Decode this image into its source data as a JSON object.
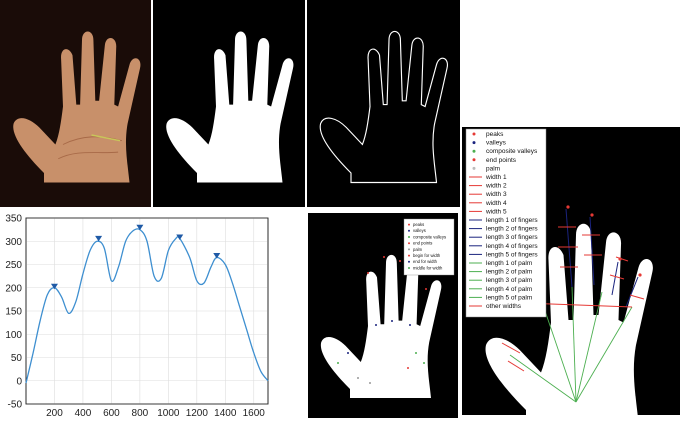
{
  "colors": {
    "black": "#000000",
    "white": "#ffffff",
    "skin": "#c8906a",
    "curve": "#3e8fd0",
    "marker": "#1f5aa6",
    "red": "#e53935",
    "blue": "#1a237e",
    "green": "#4caf50"
  },
  "panels": {
    "photo": {
      "icon": "hand-photo"
    },
    "mask": {
      "icon": "hand-silhouette"
    },
    "edge": {
      "icon": "hand-outline"
    }
  },
  "chart_data": {
    "type": "line",
    "x": [
      0,
      50,
      100,
      150,
      200,
      250,
      300,
      350,
      400,
      450,
      500,
      550,
      600,
      650,
      700,
      750,
      800,
      850,
      900,
      950,
      1000,
      1050,
      1080,
      1150,
      1200,
      1250,
      1300,
      1340,
      1400,
      1450,
      1500,
      1550,
      1600,
      1650,
      1700
    ],
    "y": [
      -5,
      60,
      130,
      185,
      200,
      180,
      145,
      170,
      230,
      280,
      300,
      285,
      215,
      245,
      300,
      322,
      325,
      300,
      225,
      220,
      280,
      305,
      306,
      265,
      215,
      210,
      245,
      265,
      250,
      210,
      160,
      110,
      60,
      20,
      0
    ],
    "peaks": [
      {
        "x": 200,
        "y": 200
      },
      {
        "x": 510,
        "y": 303
      },
      {
        "x": 800,
        "y": 327
      },
      {
        "x": 1080,
        "y": 306
      },
      {
        "x": 1340,
        "y": 266
      }
    ],
    "xticks": [
      "200",
      "400",
      "600",
      "800",
      "1000",
      "1200",
      "1400",
      "1600"
    ],
    "yticks": [
      "350",
      "300",
      "250",
      "200",
      "150",
      "100",
      "50",
      "0",
      "-50"
    ],
    "xlim": [
      0,
      1700
    ],
    "ylim": [
      -50,
      350
    ],
    "grid": true
  },
  "legend_small": {
    "items": [
      {
        "label": "peaks",
        "color": "#e53935",
        "mark": "dot"
      },
      {
        "label": "valleys",
        "color": "#1a237e",
        "mark": "dot"
      },
      {
        "label": "composite valleys",
        "color": "#4caf50",
        "mark": "dot"
      },
      {
        "label": "end points",
        "color": "#e53935",
        "mark": "dot"
      },
      {
        "label": "palm",
        "color": "#999999",
        "mark": "dot"
      },
      {
        "label": "begin for width",
        "color": "#e53935",
        "mark": "dot"
      },
      {
        "label": "end for width",
        "color": "#1a237e",
        "mark": "dot"
      },
      {
        "label": "middle for width",
        "color": "#4caf50",
        "mark": "dot"
      }
    ]
  },
  "legend_large": {
    "items": [
      {
        "label": "peaks",
        "color": "#e53935",
        "mark": "dot"
      },
      {
        "label": "valleys",
        "color": "#1a237e",
        "mark": "dot"
      },
      {
        "label": "composite valleys",
        "color": "#4caf50",
        "mark": "dot"
      },
      {
        "label": "end points",
        "color": "#e53935",
        "mark": "dot"
      },
      {
        "label": "palm",
        "color": "#bbbbbb",
        "mark": "dot"
      },
      {
        "label": "width 1",
        "color": "#e53935",
        "mark": "line"
      },
      {
        "label": "width 2",
        "color": "#e53935",
        "mark": "line"
      },
      {
        "label": "width 3",
        "color": "#e53935",
        "mark": "line"
      },
      {
        "label": "width 4",
        "color": "#e53935",
        "mark": "line"
      },
      {
        "label": "width 5",
        "color": "#e53935",
        "mark": "line"
      },
      {
        "label": "length 1 of fingers",
        "color": "#1a237e",
        "mark": "line"
      },
      {
        "label": "length 2 of fingers",
        "color": "#1a237e",
        "mark": "line"
      },
      {
        "label": "length 3 of fingers",
        "color": "#1a237e",
        "mark": "line"
      },
      {
        "label": "length 4 of fingers",
        "color": "#1a237e",
        "mark": "line"
      },
      {
        "label": "length 5 of fingers",
        "color": "#1a237e",
        "mark": "line"
      },
      {
        "label": "length 1 of palm",
        "color": "#4caf50",
        "mark": "line"
      },
      {
        "label": "length 2 of palm",
        "color": "#4caf50",
        "mark": "line"
      },
      {
        "label": "length 3 of palm",
        "color": "#4caf50",
        "mark": "line"
      },
      {
        "label": "length 4 of palm",
        "color": "#4caf50",
        "mark": "line"
      },
      {
        "label": "length 5 of palm",
        "color": "#4caf50",
        "mark": "line"
      },
      {
        "label": "other widths",
        "color": "#e53935",
        "mark": "line"
      }
    ]
  }
}
